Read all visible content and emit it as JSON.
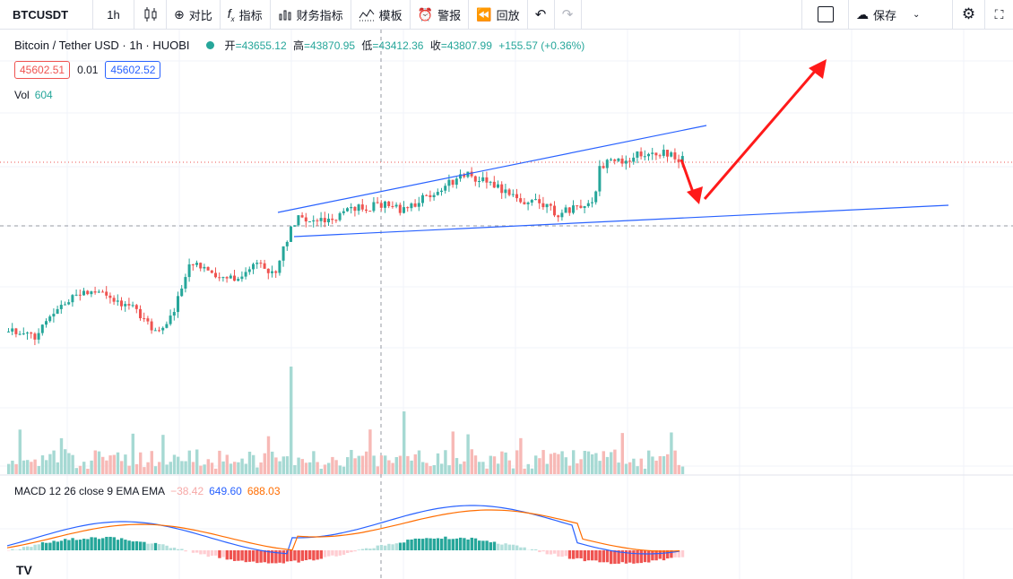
{
  "toolbar": {
    "symbol": "BTCUSDT",
    "interval": "1h",
    "candle_type_icon": "candles-icon",
    "compare_label": "对比",
    "indicators_label": "指标",
    "financials_label": "财务指标",
    "templates_label": "模板",
    "alert_label": "警报",
    "replay_label": "回放",
    "save_label": "保存"
  },
  "legend": {
    "title": "Bitcoin / Tether USD · 1h · HUOBI",
    "open_label": "开",
    "open": "=43655.12",
    "high_label": "高",
    "high": "=43870.95",
    "low_label": "低",
    "low": "=43412.36",
    "close_label": "收",
    "close": "=43807.99",
    "change": "+155.57 (+0.36%)"
  },
  "order": {
    "sell": "45602.51",
    "spread": "0.01",
    "buy": "45602.52"
  },
  "volume": {
    "label": "Vol",
    "value": "604"
  },
  "macd": {
    "label": "MACD 12 26 close 9 EMA EMA",
    "hist": "−38.42",
    "macd": "649.60",
    "signal": "688.03"
  },
  "colors": {
    "up": "#26a69a",
    "down": "#ef5350",
    "trendline": "#2962ff",
    "arrow": "#ff1a1a"
  },
  "logo": "TV"
}
